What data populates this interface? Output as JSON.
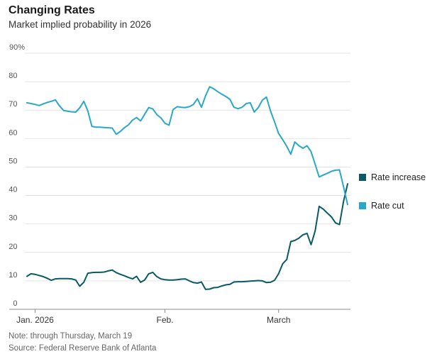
{
  "header": {
    "title": "Changing Rates",
    "subtitle": "Market implied probability in 2026"
  },
  "legend": {
    "items": [
      {
        "label": "Rate increase",
        "color": "#0a5a66"
      },
      {
        "label": "Rate cut",
        "color": "#29a8c9"
      }
    ]
  },
  "footer": {
    "note": "Note: through Thursday, March 19",
    "source": "Source: Federal Reserve Bank of Atlanta"
  },
  "chart_data": {
    "type": "line",
    "title": "Changing Rates",
    "subtitle": "Market implied probability in 2026",
    "unit": "percent",
    "n_points": 80,
    "grid": "horizontal",
    "legend_position": "right",
    "colors": {
      "grid": "#e4e4e4",
      "axis": "#8c8c8c",
      "y_label": "#555555",
      "x_label": "#333333"
    },
    "y_axis": {
      "min": 0,
      "max": 90,
      "ticks": [
        {
          "value": 90,
          "label": "90%"
        },
        {
          "value": 80,
          "label": "80"
        },
        {
          "value": 70,
          "label": "70"
        },
        {
          "value": 60,
          "label": "60"
        },
        {
          "value": 50,
          "label": "50"
        },
        {
          "value": 40,
          "label": "40"
        },
        {
          "value": 30,
          "label": "30"
        },
        {
          "value": 20,
          "label": "20"
        },
        {
          "value": 10,
          "label": "10"
        },
        {
          "value": 0,
          "label": "0"
        }
      ]
    },
    "x_axis": {
      "description": "daily observations, late Dec 2025 through March 19, 2026",
      "ticks": [
        {
          "label": "Jan. 2026",
          "index": 2
        },
        {
          "label": "Feb.",
          "index": 34
        },
        {
          "label": "March",
          "index": 62
        }
      ]
    },
    "series": [
      {
        "id": "rate-increase",
        "name": "Rate increase",
        "color": "#0a5a66",
        "values": [
          11.6,
          12.5,
          12.3,
          11.9,
          11.5,
          10.9,
          10.2,
          10.7,
          10.8,
          10.8,
          10.8,
          10.7,
          10.3,
          8.1,
          9.5,
          12.7,
          12.9,
          13.0,
          13.0,
          13.1,
          13.5,
          13.8,
          12.9,
          12.3,
          11.8,
          11.2,
          10.7,
          11.6,
          9.5,
          10.3,
          12.5,
          13.0,
          11.5,
          10.7,
          10.4,
          10.3,
          10.3,
          10.4,
          10.6,
          10.7,
          10.0,
          9.4,
          9.2,
          9.6,
          7.0,
          7.1,
          7.6,
          7.7,
          8.2,
          8.6,
          8.8,
          9.6,
          9.7,
          9.7,
          9.8,
          9.9,
          10.0,
          10.1,
          10.0,
          9.4,
          9.5,
          10.2,
          12.5,
          16.0,
          17.5,
          23.8,
          24.2,
          25.0,
          26.2,
          26.7,
          22.7,
          27.5,
          36.2,
          35.2,
          33.8,
          32.5,
          30.4,
          29.8,
          38.0,
          44.1
        ]
      },
      {
        "id": "rate-cut",
        "name": "Rate cut",
        "color": "#29a8c9",
        "values": [
          72.6,
          72.3,
          72.0,
          71.6,
          72.2,
          72.7,
          73.1,
          73.6,
          71.5,
          69.9,
          69.6,
          69.4,
          69.3,
          70.8,
          73.1,
          69.7,
          64.3,
          64.0,
          64.0,
          63.9,
          63.8,
          63.7,
          61.5,
          62.5,
          63.8,
          64.8,
          66.5,
          67.4,
          66.2,
          68.5,
          70.9,
          70.4,
          68.4,
          67.3,
          65.4,
          64.7,
          70.2,
          71.2,
          71.0,
          70.9,
          71.2,
          72.0,
          74.0,
          71.0,
          75.0,
          78.2,
          77.5,
          76.5,
          75.6,
          74.8,
          73.8,
          71.0,
          70.5,
          71.0,
          72.3,
          72.6,
          69.3,
          70.9,
          73.5,
          74.6,
          69.7,
          65.9,
          61.8,
          59.6,
          57.3,
          54.5,
          58.8,
          57.5,
          56.6,
          57.5,
          55.4,
          51.0,
          46.5,
          47.2,
          47.8,
          48.5,
          48.9,
          49.0,
          43.0,
          36.8
        ]
      }
    ]
  }
}
